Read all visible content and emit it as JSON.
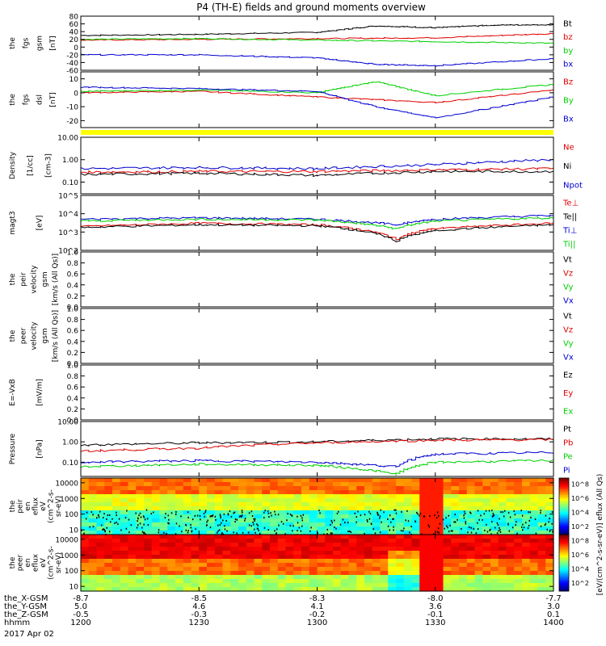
{
  "title": "P4 (TH-E) fields and ground moments overview",
  "date_label": "2017 Apr 02",
  "colors": {
    "black": "#000000",
    "red": "#e00000",
    "green": "#00d000",
    "blue": "#0000d0",
    "yellow": "#ffff00"
  },
  "chart_data": [
    {
      "id": "fgs_gsm",
      "type": "line",
      "ylabel": [
        "the",
        "fgs",
        "gsm",
        "[nT]"
      ],
      "yticks": [
        "80",
        "60",
        "40",
        "20",
        "0",
        "-20",
        "-40",
        "-60"
      ],
      "ylim": [
        -60,
        80
      ],
      "legend": [
        "Bt",
        "bz",
        "by",
        "bx"
      ],
      "series": [
        {
          "name": "Bt",
          "color": "black",
          "x": [
            1200,
            1230,
            1300,
            1315,
            1330,
            1345,
            1400
          ],
          "y": [
            30,
            33,
            38,
            55,
            50,
            57,
            58
          ]
        },
        {
          "name": "bz",
          "color": "red",
          "x": [
            1200,
            1230,
            1300,
            1330,
            1400
          ],
          "y": [
            18,
            20,
            22,
            24,
            35
          ]
        },
        {
          "name": "by",
          "color": "green",
          "x": [
            1200,
            1230,
            1300,
            1330,
            1400
          ],
          "y": [
            20,
            22,
            18,
            14,
            10
          ]
        },
        {
          "name": "bx",
          "color": "blue",
          "x": [
            1200,
            1230,
            1300,
            1315,
            1330,
            1400
          ],
          "y": [
            -20,
            -20,
            -28,
            -45,
            -48,
            -30
          ]
        }
      ]
    },
    {
      "id": "fgs_dsl",
      "type": "line",
      "ylabel": [
        "the",
        "fgs",
        "dsl",
        "[nT]"
      ],
      "yticks": [
        "10",
        "0",
        "-10",
        "-20"
      ],
      "ylim": [
        -25,
        15
      ],
      "legend": [
        "Bz",
        "By",
        "Bx"
      ],
      "series": [
        {
          "name": "Bz",
          "color": "red",
          "x": [
            1200,
            1230,
            1300,
            1330,
            1400
          ],
          "y": [
            0,
            1,
            -3,
            -7,
            2
          ]
        },
        {
          "name": "By",
          "color": "green",
          "x": [
            1200,
            1230,
            1300,
            1315,
            1330,
            1400
          ],
          "y": [
            1,
            2,
            0,
            8,
            -2,
            6
          ]
        },
        {
          "name": "Bx",
          "color": "blue",
          "x": [
            1200,
            1230,
            1300,
            1315,
            1330,
            1400
          ],
          "y": [
            4,
            3,
            1,
            -10,
            -18,
            -3
          ]
        }
      ]
    },
    {
      "id": "density",
      "type": "line",
      "ylabel": [
        "Density",
        "[1/cc]",
        "[cm-3]"
      ],
      "yticks": [
        "10.00",
        "1.00",
        "0.10"
      ],
      "log": true,
      "ylim": [
        0.03,
        10
      ],
      "legend": [
        "Ne",
        "Ni",
        "Npot"
      ],
      "series": [
        {
          "name": "Ne",
          "color": "red",
          "x": [
            1200,
            1230,
            1300,
            1330,
            1400
          ],
          "y": [
            0.28,
            0.3,
            0.3,
            0.35,
            0.4
          ]
        },
        {
          "name": "Ni",
          "color": "black",
          "x": [
            1200,
            1230,
            1300,
            1330,
            1400
          ],
          "y": [
            0.22,
            0.25,
            0.2,
            0.3,
            0.3
          ]
        },
        {
          "name": "Npot",
          "color": "blue",
          "x": [
            1200,
            1230,
            1300,
            1330,
            1400
          ],
          "y": [
            0.4,
            0.45,
            0.4,
            0.6,
            1.0
          ]
        }
      ]
    },
    {
      "id": "temperature",
      "type": "line",
      "ylabel": [
        "magt3",
        "[eV]"
      ],
      "yticks": [
        "10^5",
        "10^4",
        "10^3",
        "10^2"
      ],
      "log": true,
      "ylim": [
        100,
        100000
      ],
      "legend": [
        "Te⊥",
        "Te||",
        "Ti⊥",
        "Ti||"
      ],
      "series": [
        {
          "name": "Te⊥",
          "color": "red",
          "x": [
            1200,
            1230,
            1300,
            1320,
            1330,
            1400
          ],
          "y": [
            2000,
            3000,
            2500,
            400,
            1500,
            3000
          ]
        },
        {
          "name": "Te||",
          "color": "black",
          "x": [
            1200,
            1230,
            1300,
            1320,
            1330,
            1400
          ],
          "y": [
            1800,
            2500,
            2200,
            300,
            1200,
            2500
          ]
        },
        {
          "name": "Ti⊥",
          "color": "blue",
          "x": [
            1200,
            1230,
            1300,
            1320,
            1330,
            1400
          ],
          "y": [
            5000,
            6000,
            5000,
            2500,
            5000,
            8000
          ]
        },
        {
          "name": "Ti||",
          "color": "green",
          "x": [
            1200,
            1230,
            1300,
            1320,
            1330,
            1400
          ],
          "y": [
            4000,
            5000,
            4500,
            1500,
            4000,
            6000
          ]
        }
      ]
    },
    {
      "id": "peir_velocity",
      "type": "line",
      "ylabel": [
        "the",
        "peir",
        "velocity",
        "gsm",
        "[km/s (All Qs)]"
      ],
      "yticks": [
        "1.0",
        "0.8",
        "0.6",
        "0.4",
        "0.2",
        "0.0"
      ],
      "ylim": [
        0,
        1
      ],
      "legend": [
        "Vt",
        "Vz",
        "Vy",
        "Vx"
      ],
      "series": []
    },
    {
      "id": "peer_velocity",
      "type": "line",
      "ylabel": [
        "the",
        "peer",
        "velocity",
        "gsm",
        "[km/s (All Qs)]"
      ],
      "yticks": [
        "1.0",
        "0.8",
        "0.6",
        "0.4",
        "0.2",
        "0.0"
      ],
      "ylim": [
        0,
        1
      ],
      "legend": [
        "Vt",
        "Vz",
        "Vy",
        "Vx"
      ],
      "series": []
    },
    {
      "id": "efield",
      "type": "line",
      "ylabel": [
        "E=-VxB",
        "[mV/m]"
      ],
      "yticks": [
        "1.0",
        "0.8",
        "0.6",
        "0.4",
        "0.2",
        "0.0"
      ],
      "ylim": [
        0,
        1
      ],
      "legend": [
        "Ez",
        "Ey",
        "Ex"
      ],
      "series": []
    },
    {
      "id": "pressure",
      "type": "line",
      "ylabel": [
        "Pressure",
        "[nPa]"
      ],
      "yticks": [
        "10.00",
        "1.00",
        "0.10"
      ],
      "log": true,
      "ylim": [
        0.02,
        10
      ],
      "legend": [
        "Pt",
        "Pb",
        "Pe",
        "Pi"
      ],
      "series": [
        {
          "name": "Pt",
          "color": "black",
          "x": [
            1200,
            1230,
            1300,
            1330,
            1400
          ],
          "y": [
            0.7,
            0.9,
            1.0,
            1.4,
            1.4
          ]
        },
        {
          "name": "Pb",
          "color": "red",
          "x": [
            1200,
            1230,
            1300,
            1330,
            1400
          ],
          "y": [
            0.35,
            0.5,
            0.9,
            1.2,
            1.3
          ]
        },
        {
          "name": "Pe",
          "color": "green",
          "x": [
            1200,
            1230,
            1300,
            1320,
            1330,
            1400
          ],
          "y": [
            0.06,
            0.08,
            0.07,
            0.025,
            0.1,
            0.12
          ]
        },
        {
          "name": "Pi",
          "color": "blue",
          "x": [
            1200,
            1230,
            1300,
            1320,
            1330,
            1400
          ],
          "y": [
            0.1,
            0.12,
            0.1,
            0.06,
            0.25,
            0.3
          ]
        }
      ]
    },
    {
      "id": "peir_eflux",
      "type": "heatmap",
      "ylabel": [
        "the",
        "peir",
        "en",
        "eflux",
        "eV",
        "(cm^2-s-",
        "sr-eV)"
      ],
      "yticks": [
        "10000",
        "1000",
        "100",
        "10"
      ],
      "log": true,
      "ylim": [
        5,
        20000
      ],
      "colorbar_ticks": [
        "10^8",
        "10^6",
        "10^4",
        "10^2"
      ]
    },
    {
      "id": "peer_eflux",
      "type": "heatmap",
      "ylabel": [
        "the",
        "peer",
        "en",
        "eflux",
        "eV",
        "(cm^2-s-",
        "sr-eV)"
      ],
      "yticks": [
        "10000",
        "1000",
        "100",
        "10"
      ],
      "log": true,
      "ylim": [
        5,
        20000
      ],
      "colorbar_ticks": [
        "10^8",
        "10^6",
        "10^4",
        "10^2"
      ]
    }
  ],
  "colorbar_label": "[eV/(cm^2-s-sr-eV)]   eflux (All Qs)",
  "x_axis": {
    "rows": [
      {
        "label": "the_X-GSM",
        "values": [
          "-8.7",
          "-8.5",
          "-8.3",
          "-8.0",
          "-7.7"
        ]
      },
      {
        "label": "the_Y-GSM",
        "values": [
          "5.0",
          "4.6",
          "4.1",
          "3.6",
          "3.0"
        ]
      },
      {
        "label": "the_Z-GSM",
        "values": [
          "-0.5",
          "-0.3",
          "-0.2",
          "-0.1",
          "0.1"
        ]
      },
      {
        "label": "hhmm",
        "values": [
          "1200",
          "1230",
          "1300",
          "1330",
          "1400"
        ]
      }
    ],
    "tick_times": [
      1200,
      1230,
      1300,
      1330,
      1400
    ],
    "xlim": [
      1200,
      1400
    ]
  }
}
